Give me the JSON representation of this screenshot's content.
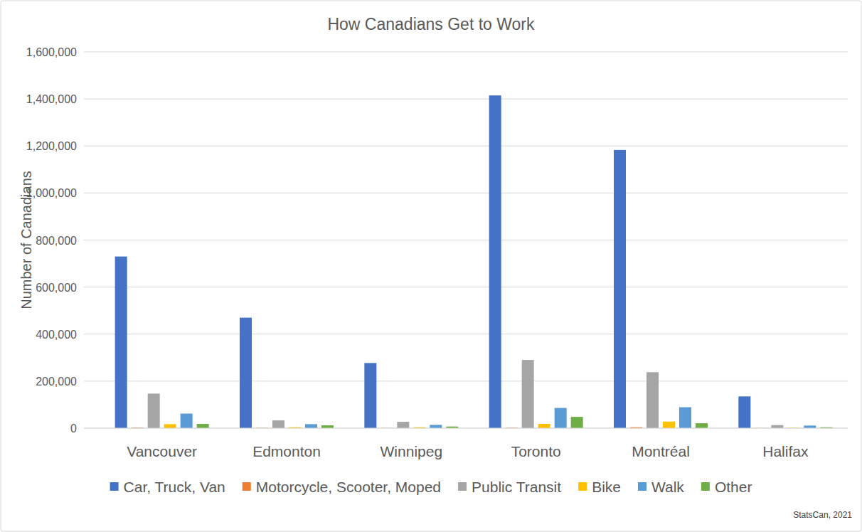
{
  "chart_data": {
    "type": "bar",
    "title": "How Canadians Get to Work",
    "y_label": "Number of Canadians",
    "source": "StatsCan, 2021",
    "categories": [
      "Vancouver",
      "Edmonton",
      "Winnipeg",
      "Toronto",
      "Montréal",
      "Halifax"
    ],
    "series": [
      {
        "name": "Car, Truck, Van",
        "color": "#4472c4",
        "values": [
          730000,
          470000,
          277000,
          1415000,
          1183000,
          135000
        ]
      },
      {
        "name": "Motorcycle, Scooter, Moped",
        "color": "#ed7d31",
        "values": [
          2500,
          1500,
          1000,
          2000,
          4000,
          1000
        ]
      },
      {
        "name": "Public Transit",
        "color": "#a5a5a5",
        "values": [
          147000,
          33000,
          27000,
          290000,
          238000,
          13000
        ]
      },
      {
        "name": "Bike",
        "color": "#ffc000",
        "values": [
          17000,
          4000,
          4000,
          18000,
          28000,
          2000
        ]
      },
      {
        "name": "Walk",
        "color": "#5b9bd5",
        "values": [
          62000,
          17000,
          14000,
          86000,
          89000,
          11000
        ]
      },
      {
        "name": "Other",
        "color": "#70ad47",
        "values": [
          18000,
          12000,
          7000,
          48000,
          21000,
          4000
        ]
      }
    ],
    "ylim": [
      0,
      1600000
    ],
    "yticks": [
      0,
      {
        "value": 200000,
        "label": "200,000"
      },
      {
        "value": 400000,
        "label": "400,000"
      },
      {
        "value": 600000,
        "label": "600,000"
      },
      {
        "value": 800000,
        "label": "800,000"
      },
      {
        "value": 1000000,
        "label": "1,000,000"
      },
      {
        "value": 1200000,
        "label": "1,200,000"
      },
      {
        "value": 1400000,
        "label": "1,400,000"
      },
      {
        "value": 1600000,
        "label": "1,600,000"
      }
    ],
    "grid": true,
    "legend": "bottom"
  }
}
